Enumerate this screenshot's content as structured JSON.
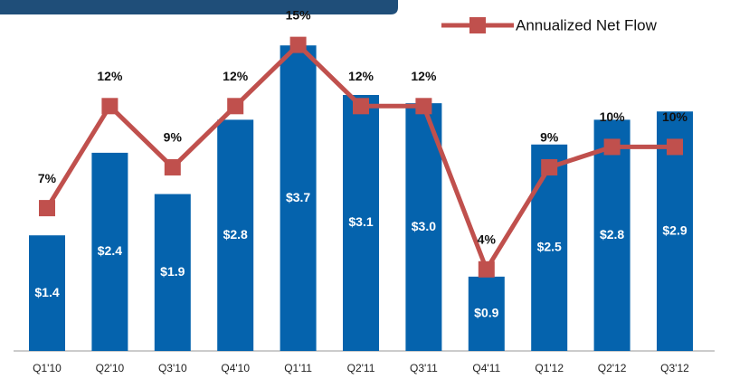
{
  "chart_data": {
    "type": "bar-line",
    "categories": [
      "Q1'10",
      "Q2'10",
      "Q3'10",
      "Q4'10",
      "Q1'11",
      "Q2'11",
      "Q3'11",
      "Q4'11",
      "Q1'12",
      "Q2'12",
      "Q3'12"
    ],
    "series": [
      {
        "color": "#0563ad",
        "values": [
          1.4,
          2.4,
          1.9,
          2.8,
          3.7,
          3.1,
          3.0,
          0.9,
          2.5,
          2.8,
          2.9
        ],
        "value_labels": [
          "$1.4",
          "$2.4",
          "$1.9",
          "$2.8",
          "$3.7",
          "$3.1",
          "$3.0",
          "$0.9",
          "$2.5",
          "$2.8",
          "$2.9"
        ]
      },
      {
        "name": "Annualized Net Flow",
        "color": "#c0504d",
        "axis": "y2",
        "values": [
          7,
          12,
          9,
          12,
          15,
          12,
          12,
          4,
          9,
          10,
          10
        ],
        "value_labels": [
          "7%",
          "12%",
          "9%",
          "12%",
          "15%",
          "12%",
          "12%",
          "4%",
          "9%",
          "10%",
          "10%"
        ]
      }
    ],
    "ylim": [
      0,
      4.25
    ],
    "y2lim": [
      0,
      17.2
    ],
    "legend": "top-right"
  }
}
